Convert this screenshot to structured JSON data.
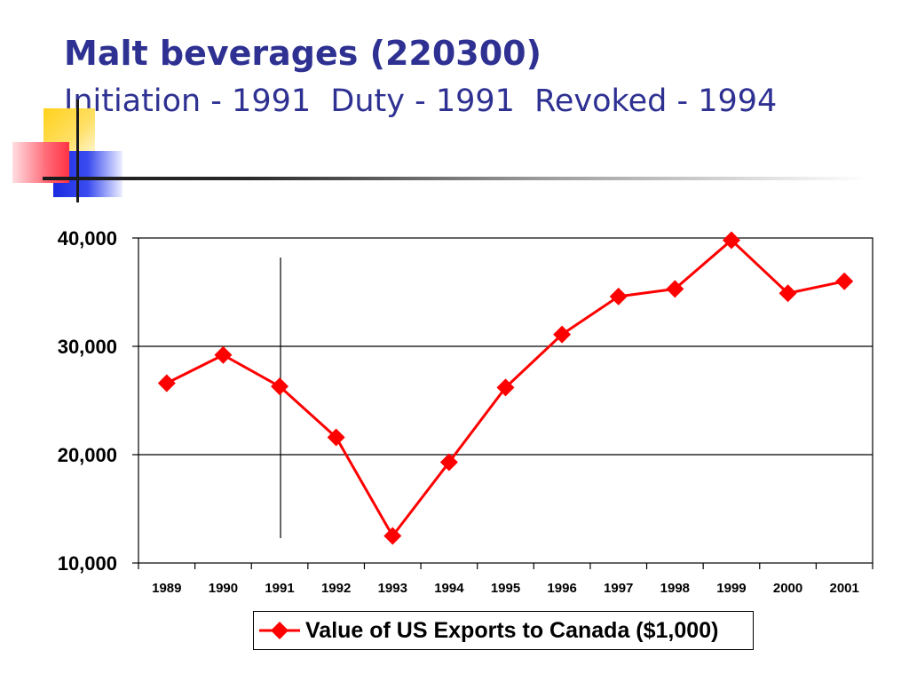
{
  "slide": {
    "title": "Malt beverages (220300)",
    "subtitle": "Initiation - 1991  Duty - 1991  Revoked - 1994"
  },
  "chart_data": {
    "type": "line",
    "x": [
      "1989",
      "1990",
      "1991",
      "1992",
      "1993",
      "1994",
      "1995",
      "1996",
      "1997",
      "1998",
      "1999",
      "2000",
      "2001"
    ],
    "series": [
      {
        "name": "Value of US Exports to Canada ($1,000)",
        "color": "#ff0000",
        "marker": "diamond",
        "values": [
          26600,
          29200,
          26300,
          21600,
          12500,
          19300,
          26200,
          31100,
          34600,
          35300,
          39800,
          34900,
          36000
        ]
      }
    ],
    "ylim": [
      10000,
      40000
    ],
    "yticks": [
      10000,
      20000,
      30000,
      40000
    ],
    "ytick_labels": [
      "10,000",
      "20,000",
      "30,000",
      "40,000"
    ],
    "grid": "horizontal",
    "event_marker_x": "1991",
    "legend_position": "bottom",
    "xlabel": "",
    "ylabel": ""
  }
}
